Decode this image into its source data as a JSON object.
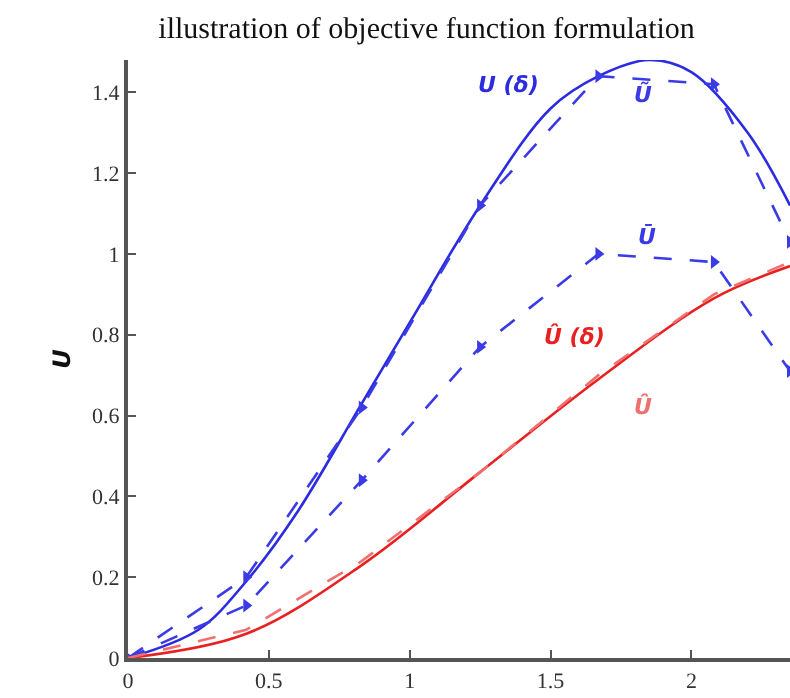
{
  "chart_data": {
    "type": "line",
    "title": "illustration of objective function formulation",
    "ylabel": "U",
    "xlim": [
      0,
      2.35
    ],
    "ylim": [
      0,
      1.48
    ],
    "xticks": [
      0,
      0.5,
      1,
      1.5,
      2
    ],
    "yticks": [
      0,
      0.2,
      0.4,
      0.6,
      0.8,
      1,
      1.2,
      1.4
    ],
    "grid": false,
    "legend": false,
    "series": [
      {
        "name": "U (δ)",
        "color": "#2b2be0",
        "line_style": "solid",
        "marker": "none",
        "x": [
          0,
          0.25,
          0.42,
          0.6,
          0.83,
          1.0,
          1.25,
          1.5,
          1.67,
          1.85,
          2.0,
          2.2,
          2.35
        ],
        "values": [
          0,
          0.07,
          0.19,
          0.36,
          0.63,
          0.83,
          1.12,
          1.36,
          1.44,
          1.48,
          1.45,
          1.3,
          1.12
        ]
      },
      {
        "name": "Ũ",
        "color": "#3a3ae6",
        "line_style": "dashed",
        "marker": "triangle",
        "x": [
          0,
          0.42,
          0.83,
          1.25,
          1.67,
          2.08,
          2.35
        ],
        "values": [
          0,
          0.2,
          0.62,
          1.12,
          1.44,
          1.42,
          1.03
        ]
      },
      {
        "name": "Ū",
        "color": "#3a3ae6",
        "line_style": "dashed",
        "marker": "triangle",
        "x": [
          0,
          0.42,
          0.83,
          1.25,
          1.67,
          2.08,
          2.35
        ],
        "values": [
          0,
          0.13,
          0.44,
          0.77,
          1.0,
          0.98,
          0.71
        ]
      },
      {
        "name": "Û (δ)",
        "color": "#e82020",
        "line_style": "solid",
        "marker": "none",
        "x": [
          0,
          0.42,
          0.83,
          1.25,
          1.67,
          2.08,
          2.35
        ],
        "values": [
          0,
          0.06,
          0.23,
          0.46,
          0.69,
          0.89,
          0.97
        ]
      },
      {
        "name": "Û",
        "color": "#f07070",
        "line_style": "dashed",
        "marker": "none",
        "x": [
          0,
          0.42,
          0.83,
          1.25,
          1.67,
          2.08,
          2.35
        ],
        "values": [
          0,
          0.07,
          0.24,
          0.46,
          0.7,
          0.9,
          0.98
        ]
      }
    ]
  }
}
